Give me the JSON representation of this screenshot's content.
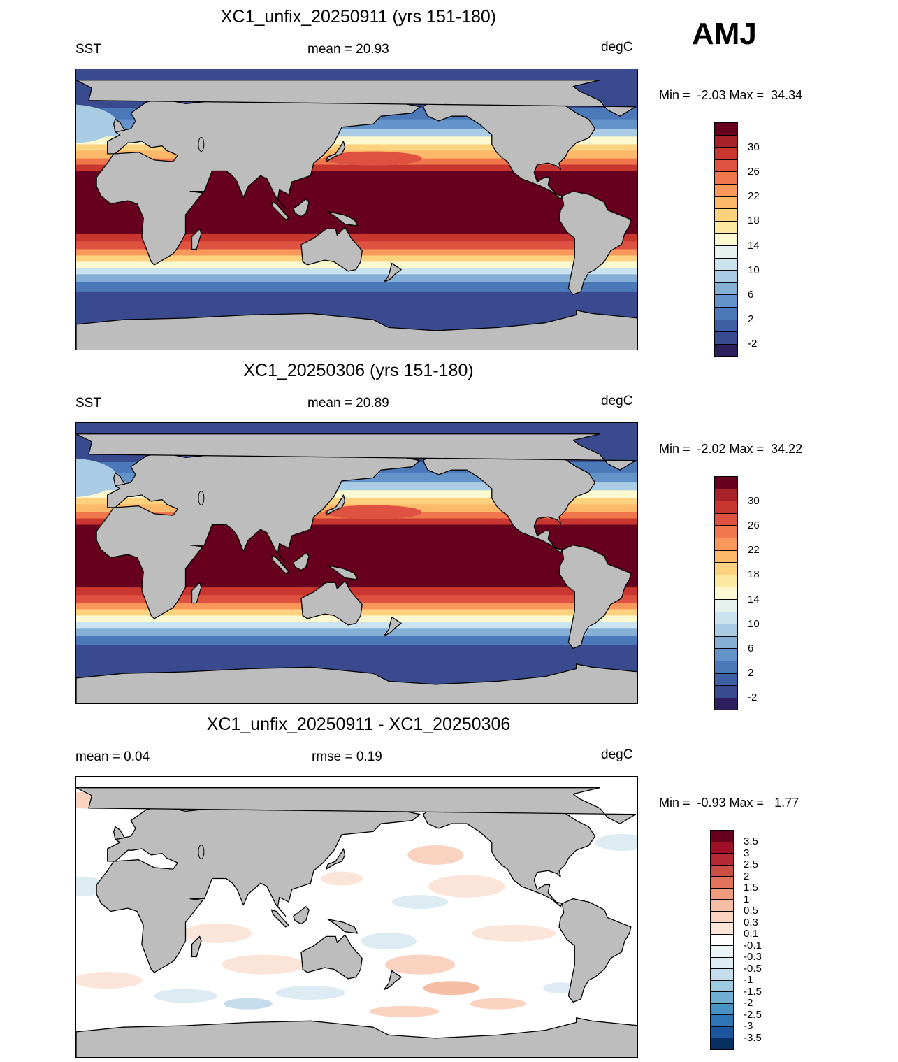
{
  "season": "AMJ",
  "units": "degC",
  "panels": [
    {
      "id": "p1",
      "title": "XC1_unfix_20250911 (yrs 151-180)",
      "left_label": "SST",
      "center_label": "mean =  20.93",
      "right_label": "degC",
      "minmax": "Min =  -2.03 Max =  34.34",
      "type": "field"
    },
    {
      "id": "p2",
      "title": "XC1_20250306 (yrs 151-180)",
      "left_label": "SST",
      "center_label": "mean =  20.89",
      "right_label": "degC",
      "minmax": "Min =  -2.02 Max =  34.22",
      "type": "field"
    },
    {
      "id": "p3",
      "title": "XC1_unfix_20250911 - XC1_20250306",
      "left_label": "mean =   0.04",
      "center_label": "rmse =   0.19",
      "right_label": "degC",
      "minmax": "Min =  -0.93 Max =   1.77",
      "type": "difference"
    }
  ],
  "colorbars": {
    "sst": {
      "colors": [
        "#2d1e5e",
        "#3a4a8f",
        "#3f5fa5",
        "#4a78b8",
        "#6393c8",
        "#86afd6",
        "#a9cbe3",
        "#cbe3ee",
        "#e7f2ee",
        "#fbf9cf",
        "#fde8a0",
        "#fdd27e",
        "#fdb86a",
        "#f9985a",
        "#f0774c",
        "#df5140",
        "#c93630",
        "#a62228",
        "#67001f"
      ],
      "tick_labels": [
        "-2",
        "2",
        "6",
        "10",
        "14",
        "18",
        "22",
        "26",
        "30"
      ]
    },
    "diff": {
      "colors": [
        "#053061",
        "#1a559e",
        "#2f75b6",
        "#4892c4",
        "#72aed2",
        "#9ecae1",
        "#c4dcec",
        "#ddebf3",
        "#edf4f8",
        "#ffffff",
        "#fbe5d9",
        "#f9d3c0",
        "#f6bea4",
        "#ef9b7c",
        "#e0735a",
        "#cc4f45",
        "#b72a35",
        "#9f1027",
        "#67001f"
      ],
      "tick_labels": [
        "-3.5",
        "-3",
        "-2.5",
        "-2",
        "-1.5",
        "-1",
        "-0.5",
        "-0.3",
        "-0.1",
        "0.1",
        "0.3",
        "0.5",
        "1",
        "1.5",
        "2",
        "2.5",
        "3",
        "3.5"
      ]
    }
  }
}
